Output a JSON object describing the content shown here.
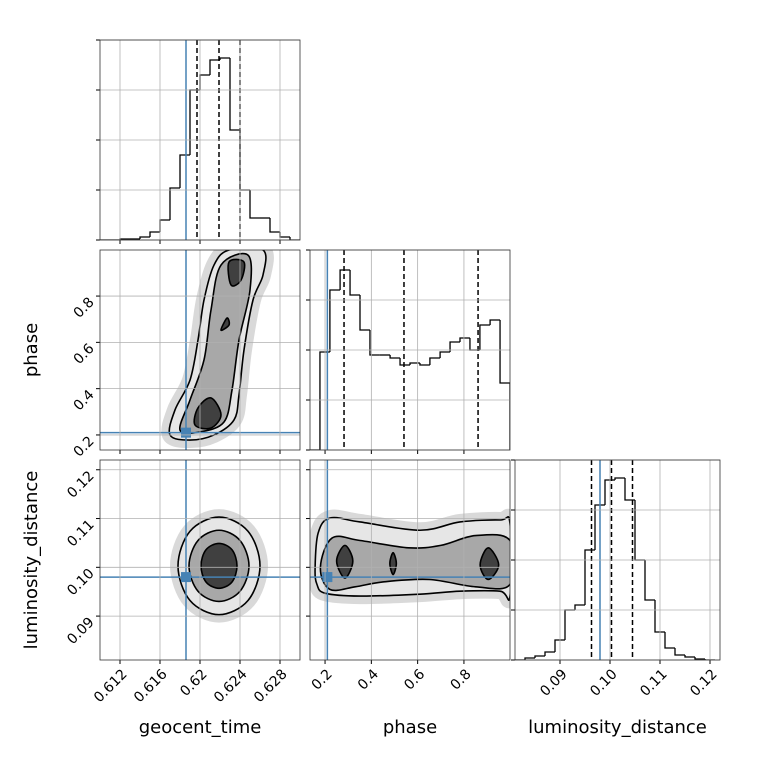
{
  "chart_data": {
    "type": "corner",
    "axes": [
      {
        "label": "geocent_time",
        "lim": [
          0.61,
          0.63
        ],
        "ticks": [
          0.612,
          0.616,
          0.62,
          0.624,
          0.628
        ],
        "truth": 0.6186,
        "quantiles": [
          0.6197,
          0.6219,
          0.624
        ]
      },
      {
        "label": "phase",
        "lim": [
          0.135,
          0.999
        ],
        "ticks": [
          0.2,
          0.4,
          0.6,
          0.8
        ],
        "truth": 0.21,
        "quantiles": [
          0.282,
          0.541,
          0.861
        ]
      },
      {
        "label": "luminosity_distance",
        "lim": [
          0.081,
          0.122
        ],
        "ticks": [
          0.09,
          {
            "value": 0.1,
            "label": "0.10"
          },
          0.11,
          0.12
        ],
        "truth": 0.098,
        "quantiles": [
          0.0963,
          0.1003,
          0.1045
        ]
      }
    ],
    "hist_ylim": [
      0,
      200
    ],
    "hist_yticks": [
      0,
      50,
      100,
      150,
      200
    ],
    "histograms": [
      {
        "bins": [
          0.61,
          0.611,
          0.612,
          0.613,
          0.614,
          0.615,
          0.616,
          0.617,
          0.618,
          0.619,
          0.62,
          0.621,
          0.622,
          0.623,
          0.624,
          0.625,
          0.626,
          0.627,
          0.628,
          0.629,
          0.63
        ],
        "counts": [
          0,
          0,
          1,
          1,
          3,
          8,
          20,
          52,
          85,
          150,
          165,
          180,
          182,
          110,
          50,
          22,
          22,
          8,
          3,
          0
        ]
      },
      {
        "bins": [
          0.135,
          0.178,
          0.221,
          0.265,
          0.308,
          0.351,
          0.394,
          0.437,
          0.481,
          0.524,
          0.567,
          0.61,
          0.653,
          0.697,
          0.74,
          0.783,
          0.826,
          0.869,
          0.913,
          0.956,
          0.999
        ],
        "counts": [
          0,
          98,
          160,
          180,
          155,
          120,
          95,
          95,
          92,
          85,
          87,
          85,
          92,
          98,
          108,
          112,
          100,
          125,
          130,
          67
        ]
      },
      {
        "bins": [
          0.081,
          0.083,
          0.085,
          0.087,
          0.089,
          0.091,
          0.093,
          0.095,
          0.097,
          0.099,
          0.101,
          0.103,
          0.105,
          0.107,
          0.109,
          0.111,
          0.113,
          0.115,
          0.117,
          0.119,
          0.121
        ],
        "counts": [
          0,
          2,
          4,
          8,
          20,
          50,
          55,
          110,
          155,
          180,
          182,
          160,
          100,
          60,
          28,
          12,
          5,
          3,
          1,
          0
        ]
      }
    ],
    "pairs": [
      {
        "x": 0,
        "y": 1,
        "contours": [
          [
            [
              [
                0.617,
                0.2
              ],
              [
                0.6175,
                0.308
              ],
              [
                0.619,
                0.437
              ],
              [
                0.6198,
                0.61
              ],
              [
                0.6204,
                0.783
              ],
              [
                0.6214,
                0.934
              ],
              [
                0.6229,
                0.999
              ],
              [
                0.6263,
                0.999
              ],
              [
                0.6263,
                0.891
              ],
              [
                0.6253,
                0.783
              ],
              [
                0.6244,
                0.567
              ],
              [
                0.6239,
                0.373
              ],
              [
                0.6234,
                0.265
              ],
              [
                0.6214,
                0.2
              ],
              [
                0.619,
                0.178
              ]
            ]
          ],
          [
            [
              [
                0.618,
                0.221
              ],
              [
                0.619,
                0.351
              ],
              [
                0.6204,
                0.524
              ],
              [
                0.6211,
                0.74
              ],
              [
                0.6221,
                0.934
              ],
              [
                0.6248,
                0.977
              ],
              [
                0.625,
                0.826
              ],
              [
                0.6239,
                0.61
              ],
              [
                0.6232,
                0.394
              ],
              [
                0.6224,
                0.256
              ],
              [
                0.62,
                0.213
              ]
            ]
          ],
          [
            [
              [
                0.6195,
                0.243
              ],
              [
                0.6198,
                0.317
              ],
              [
                0.6211,
                0.36
              ],
              [
                0.6221,
                0.287
              ],
              [
                0.6211,
                0.23
              ]
            ],
            [
              [
                0.6221,
                0.653
              ],
              [
                0.6227,
                0.705
              ],
              [
                0.6229,
                0.675
              ]
            ],
            [
              [
                0.6229,
                0.947
              ],
              [
                0.6244,
                0.947
              ],
              [
                0.6241,
                0.869
              ],
              [
                0.6231,
                0.848
              ]
            ]
          ]
        ]
      },
      {
        "x": 0,
        "y": 2,
        "contours": [
          [
            [
              [
                0.626,
                0.1003
              ],
              [
                0.6248,
                0.1074
              ],
              [
                0.6219,
                0.1103
              ],
              [
                0.619,
                0.1074
              ],
              [
                0.6178,
                0.1003
              ],
              [
                0.619,
                0.0932
              ],
              [
                0.6219,
                0.0903
              ],
              [
                0.6248,
                0.0932
              ]
            ]
          ],
          [
            [
              [
                0.6249,
                0.1003
              ],
              [
                0.624,
                0.1055
              ],
              [
                0.6219,
                0.1076
              ],
              [
                0.6198,
                0.1055
              ],
              [
                0.6189,
                0.1003
              ],
              [
                0.6198,
                0.0951
              ],
              [
                0.6219,
                0.093
              ],
              [
                0.624,
                0.0951
              ]
            ]
          ],
          [
            [
              [
                0.6237,
                0.1003
              ],
              [
                0.6232,
                0.1036
              ],
              [
                0.6219,
                0.1049
              ],
              [
                0.6206,
                0.1036
              ],
              [
                0.6201,
                0.1003
              ],
              [
                0.6206,
                0.097
              ],
              [
                0.6219,
                0.0957
              ],
              [
                0.6232,
                0.097
              ]
            ]
          ]
        ]
      },
      {
        "x": 1,
        "y": 2,
        "contours": [
          [
            [
              [
                0.157,
                0.0998
              ],
              [
                0.17,
                0.107
              ],
              [
                0.221,
                0.1101
              ],
              [
                0.351,
                0.1093
              ],
              [
                0.61,
                0.1076
              ],
              [
                0.783,
                0.1093
              ],
              [
                0.956,
                0.1097
              ],
              [
                0.999,
                0.109
              ],
              [
                0.999,
                0.0941
              ],
              [
                0.956,
                0.0951
              ],
              [
                0.783,
                0.0951
              ],
              [
                0.61,
                0.0945
              ],
              [
                0.351,
                0.0941
              ],
              [
                0.2,
                0.0947
              ],
              [
                0.165,
                0.0965
              ]
            ]
          ],
          [
            [
              [
                0.18,
                0.1
              ],
              [
                0.23,
                0.106
              ],
              [
                0.351,
                0.1055
              ],
              [
                0.56,
                0.104
              ],
              [
                0.7,
                0.1045
              ],
              [
                0.85,
                0.1065
              ],
              [
                0.999,
                0.1055
              ],
              [
                0.999,
                0.0965
              ],
              [
                0.85,
                0.096
              ],
              [
                0.65,
                0.0975
              ],
              [
                0.45,
                0.097
              ],
              [
                0.33,
                0.096
              ],
              [
                0.22,
                0.0955
              ]
            ]
          ],
          [
            [
              [
                0.25,
                0.1013
              ],
              [
                0.286,
                0.1045
              ],
              [
                0.32,
                0.1013
              ],
              [
                0.286,
                0.0978
              ]
            ],
            [
              [
                0.48,
                0.1008
              ],
              [
                0.494,
                0.103
              ],
              [
                0.508,
                0.1008
              ],
              [
                0.494,
                0.0985
              ]
            ],
            [
              [
                0.87,
                0.1005
              ],
              [
                0.905,
                0.104
              ],
              [
                0.95,
                0.1005
              ],
              [
                0.905,
                0.0975
              ]
            ]
          ]
        ]
      }
    ],
    "line_color": "#000000",
    "truth_color": "#4682b4",
    "grid_color": "#b0b0b0",
    "scatter_color": "#d0d0d0",
    "level_colors": [
      "#e6e6e6",
      "#a8a8a8",
      "#404040"
    ],
    "grid": true
  }
}
